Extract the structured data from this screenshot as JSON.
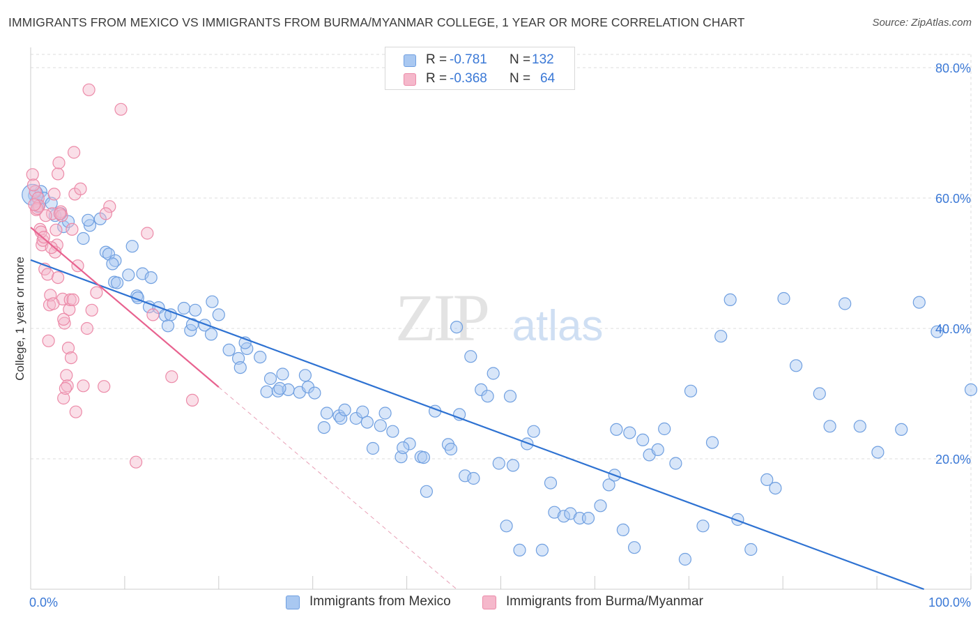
{
  "header": {
    "title": "IMMIGRANTS FROM MEXICO VS IMMIGRANTS FROM BURMA/MYANMAR COLLEGE, 1 YEAR OR MORE CORRELATION CHART",
    "source": "Source: ZipAtlas.com"
  },
  "watermark": {
    "zip": "ZIP",
    "atlas": "atlas"
  },
  "legend": {
    "r_label": "R =",
    "n_label": "N =",
    "series": [
      {
        "name": "Immigrants from Mexico",
        "r": "-0.781",
        "n": "132"
      },
      {
        "name": "Immigrants from Burma/Myanmar",
        "r": "-0.368",
        "n": "64"
      }
    ]
  },
  "colors": {
    "mexico_fill": "#a9c8f1",
    "mexico_stroke": "#6f9fe0",
    "mexico_line": "#2e72d2",
    "burma_fill": "#f5b8cb",
    "burma_stroke": "#ec8aa8",
    "burma_line": "#e8628f",
    "axis_text": "#3a78d6",
    "grid": "#dddddd"
  },
  "chart_data": {
    "type": "scatter",
    "title": "IMMIGRANTS FROM MEXICO VS IMMIGRANTS FROM BURMA/MYANMAR COLLEGE, 1 YEAR OR MORE CORRELATION CHART",
    "xlabel": "",
    "ylabel": "College, 1 year or more",
    "xlim": [
      0,
      100
    ],
    "ylim": [
      0,
      80
    ],
    "x_tick_labels": [
      "0.0%",
      "100.0%"
    ],
    "y_ticks": [
      20,
      40,
      60,
      80
    ],
    "y_tick_labels": [
      "20.0%",
      "40.0%",
      "60.0%",
      "80.0%"
    ],
    "grid": true,
    "series": [
      {
        "name": "Immigrants from Mexico",
        "r": -0.781,
        "n": 132,
        "trend": {
          "x": [
            0,
            95
          ],
          "y": [
            50.5,
            0
          ]
        },
        "x": [
          0.4,
          1.1,
          0.6,
          0.8,
          1.4,
          2.2,
          2.6,
          3.2,
          3.5,
          4.0,
          5.6,
          6.3,
          6.1,
          7.4,
          8.0,
          8.3,
          9.0,
          8.9,
          9.2,
          8.7,
          10.4,
          10.8,
          11.3,
          11.4,
          11.9,
          12.6,
          12.8,
          13.6,
          14.3,
          14.6,
          14.9,
          16.3,
          17.0,
          17.5,
          17.2,
          18.5,
          19.3,
          19.2,
          20.0,
          21.1,
          22.1,
          22.3,
          23.0,
          22.8,
          24.4,
          25.1,
          25.5,
          26.3,
          26.8,
          27.4,
          26.5,
          28.6,
          29.2,
          29.5,
          30.2,
          31.5,
          31.2,
          32.8,
          33.0,
          33.4,
          34.6,
          35.3,
          35.8,
          36.4,
          37.2,
          37.7,
          38.5,
          39.4,
          40.3,
          39.6,
          41.5,
          42.1,
          41.8,
          43.0,
          44.4,
          45.6,
          44.7,
          45.3,
          46.8,
          46.2,
          47.1,
          47.9,
          49.2,
          48.6,
          49.8,
          50.6,
          51.3,
          51.0,
          52.0,
          52.8,
          53.5,
          54.4,
          55.3,
          55.7,
          56.7,
          57.4,
          58.4,
          59.3,
          60.6,
          61.5,
          62.3,
          62.1,
          63.0,
          63.7,
          64.2,
          65.1,
          65.8,
          66.7,
          67.4,
          68.6,
          69.6,
          70.2,
          71.5,
          72.5,
          73.4,
          74.4,
          75.2,
          76.6,
          78.3,
          79.2,
          80.1,
          81.4,
          83.9,
          85.0,
          86.6,
          88.2,
          90.1,
          92.6,
          94.5,
          96.4,
          100.0,
          0.2
        ],
        "y": [
          60.4,
          61.0,
          59.5,
          58.7,
          60.0,
          59.2,
          57.3,
          57.6,
          55.6,
          56.4,
          53.8,
          55.8,
          56.6,
          56.8,
          51.7,
          51.4,
          50.4,
          47.1,
          47.0,
          49.9,
          48.2,
          52.6,
          45.0,
          44.7,
          48.4,
          43.3,
          47.8,
          43.2,
          42.0,
          40.4,
          42.1,
          43.1,
          39.7,
          42.8,
          40.6,
          40.5,
          44.1,
          39.1,
          42.1,
          36.7,
          35.4,
          34.0,
          36.9,
          37.8,
          35.6,
          30.3,
          32.3,
          30.4,
          33.0,
          30.6,
          30.8,
          30.2,
          32.8,
          31.0,
          30.1,
          27.0,
          24.8,
          26.6,
          26.2,
          27.5,
          26.2,
          27.2,
          25.6,
          21.6,
          25.1,
          27.0,
          24.2,
          20.3,
          22.3,
          21.7,
          20.3,
          15.0,
          20.2,
          27.3,
          22.2,
          26.8,
          21.5,
          40.2,
          35.7,
          17.4,
          17.0,
          30.6,
          33.1,
          29.6,
          19.3,
          9.7,
          19.0,
          29.6,
          6.0,
          22.3,
          24.2,
          6.0,
          16.3,
          11.8,
          11.2,
          11.6,
          10.9,
          10.9,
          12.8,
          16.0,
          24.5,
          17.5,
          9.1,
          24.0,
          6.4,
          22.9,
          20.6,
          21.4,
          24.6,
          19.3,
          4.6,
          30.4,
          9.7,
          22.5,
          38.8,
          44.4,
          10.7,
          6.1,
          16.8,
          15.5,
          44.6,
          34.3,
          30.0,
          25.0,
          43.8,
          25.0,
          21.0,
          24.5,
          44.0,
          39.5,
          30.6,
          60.5
        ]
      },
      {
        "name": "Immigrants from Burma/Myanmar",
        "r": -0.368,
        "n": 64,
        "trend": {
          "x": [
            0,
            20
          ],
          "y": [
            55.5,
            31.0
          ]
        },
        "x": [
          0.2,
          0.5,
          0.8,
          0.6,
          0.9,
          1.0,
          1.2,
          1.5,
          1.3,
          1.8,
          2.0,
          2.1,
          2.3,
          2.5,
          2.7,
          2.8,
          2.9,
          3.0,
          3.2,
          3.3,
          3.4,
          3.5,
          3.6,
          3.8,
          3.9,
          4.1,
          4.2,
          4.4,
          4.5,
          4.7,
          5.0,
          5.6,
          6.0,
          6.5,
          7.0,
          7.8,
          8.4,
          0.3,
          1.6,
          2.4,
          2.6,
          3.1,
          1.1,
          0.7,
          1.9,
          3.7,
          4.0,
          4.3,
          4.8,
          5.3,
          1.4,
          2.2,
          2.9,
          3.5,
          4.6,
          6.2,
          8.0,
          9.6,
          11.2,
          12.4,
          13.0,
          15.0,
          17.2,
          0.4
        ],
        "y": [
          63.6,
          61.0,
          60.0,
          58.2,
          58.8,
          55.2,
          52.8,
          49.1,
          53.5,
          48.3,
          43.6,
          45.1,
          57.6,
          60.6,
          55.1,
          52.8,
          63.7,
          65.4,
          57.9,
          57.3,
          44.5,
          29.3,
          40.8,
          32.8,
          31.2,
          42.9,
          44.4,
          55.2,
          44.4,
          60.6,
          49.6,
          31.2,
          40.0,
          42.8,
          45.5,
          31.1,
          58.7,
          62.0,
          57.3,
          43.8,
          51.7,
          57.6,
          54.8,
          58.4,
          38.1,
          30.8,
          37.0,
          35.5,
          27.2,
          61.4,
          54.0,
          52.4,
          47.8,
          41.4,
          67.0,
          76.6,
          57.6,
          73.6,
          19.5,
          54.6,
          42.1,
          32.6,
          29.0,
          59.0
        ]
      }
    ]
  }
}
